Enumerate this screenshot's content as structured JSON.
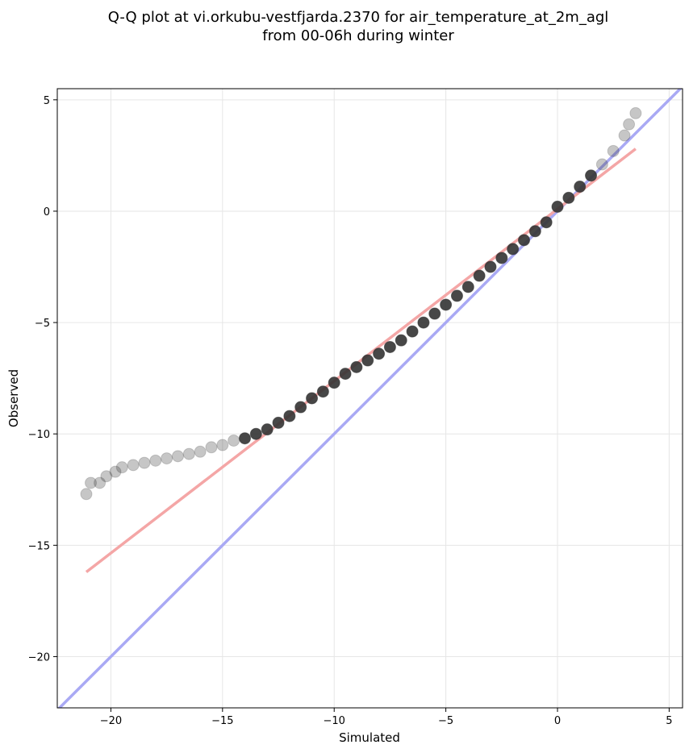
{
  "chart_data": {
    "type": "scatter",
    "title": "Q-Q plot at vi.orkubu-vestfjarda.2370 for air_temperature_at_2m_agl",
    "subtitle": "from 00-06h during winter",
    "xlabel": "Simulated",
    "ylabel": "Observed",
    "xlim": [
      -22.4,
      5.6
    ],
    "ylim": [
      -22.3,
      5.5
    ],
    "xticks": [
      -20,
      -15,
      -10,
      -5,
      0,
      5
    ],
    "yticks": [
      5,
      0,
      -5,
      -10,
      -15,
      -20
    ],
    "grid": true,
    "colors": {
      "points": "#333333",
      "fit_line": "#f4a6a6",
      "identity_line": "#a9a9f4"
    },
    "fit_line": {
      "x": [
        -21.1,
        3.5
      ],
      "y": [
        -16.2,
        2.8
      ]
    },
    "identity_line": {
      "x": [
        -22.4,
        5.6
      ],
      "y": [
        -22.4,
        5.6
      ]
    },
    "points": {
      "x": [
        -21.1,
        -20.9,
        -20.5,
        -20.2,
        -19.8,
        -19.5,
        -19.0,
        -18.5,
        -18.0,
        -17.5,
        -17.0,
        -16.5,
        -16.0,
        -15.5,
        -15.0,
        -14.5,
        -14.0,
        -13.5,
        -13.0,
        -12.5,
        -12.0,
        -11.5,
        -11.0,
        -10.5,
        -10.0,
        -9.5,
        -9.0,
        -8.5,
        -8.0,
        -7.5,
        -7.0,
        -6.5,
        -6.0,
        -5.5,
        -5.0,
        -4.5,
        -4.0,
        -3.5,
        -3.0,
        -2.5,
        -2.0,
        -1.5,
        -1.0,
        -0.5,
        0.0,
        0.5,
        1.0,
        1.5,
        2.0,
        2.5,
        3.0,
        3.2,
        3.5
      ],
      "y": [
        -12.7,
        -12.2,
        -12.2,
        -11.9,
        -11.7,
        -11.5,
        -11.4,
        -11.3,
        -11.2,
        -11.1,
        -11.0,
        -10.9,
        -10.8,
        -10.6,
        -10.5,
        -10.3,
        -10.2,
        -10.0,
        -9.8,
        -9.5,
        -9.2,
        -8.8,
        -8.4,
        -8.1,
        -7.7,
        -7.3,
        -7.0,
        -6.7,
        -6.4,
        -6.1,
        -5.8,
        -5.4,
        -5.0,
        -4.6,
        -4.2,
        -3.8,
        -3.4,
        -2.9,
        -2.5,
        -2.1,
        -1.7,
        -1.3,
        -0.9,
        -0.5,
        0.2,
        0.6,
        1.1,
        1.6,
        2.1,
        2.7,
        3.4,
        3.9,
        4.4
      ]
    }
  }
}
